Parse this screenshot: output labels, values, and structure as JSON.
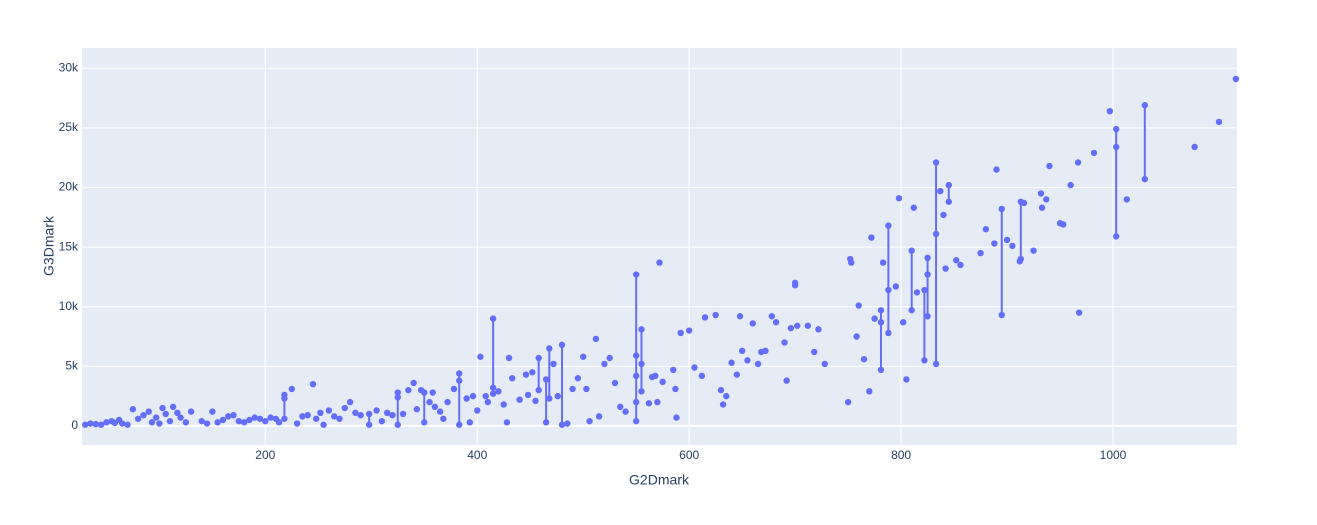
{
  "chart_data": {
    "type": "scatter",
    "x_label": "G2Dmark",
    "y_label": "G3Dmark",
    "color": "#636efa",
    "grid": true,
    "xlim": [
      27,
      1117
    ],
    "xticks": [
      200,
      400,
      600,
      800,
      1000
    ],
    "ylim": [
      -1600,
      31700
    ],
    "yticks": [
      0,
      {
        "value": 5000,
        "label": "5k"
      },
      {
        "value": 10000,
        "label": "10k"
      },
      {
        "value": 15000,
        "label": "15k"
      },
      {
        "value": 20000,
        "label": "20k"
      },
      {
        "value": 25000,
        "label": "25k"
      },
      {
        "value": 30000,
        "label": "30k"
      }
    ],
    "x": [
      30,
      35,
      40,
      45,
      50,
      55,
      58,
      62,
      65,
      70,
      75,
      80,
      85,
      90,
      93,
      97,
      100,
      103,
      106,
      110,
      113,
      117,
      120,
      125,
      130,
      140,
      145,
      150,
      155,
      160,
      165,
      170,
      175,
      180,
      185,
      190,
      195,
      200,
      205,
      210,
      213,
      218,
      218,
      218,
      225,
      230,
      235,
      240,
      245,
      248,
      252,
      255,
      260,
      265,
      270,
      275,
      280,
      285,
      290,
      298,
      298,
      305,
      310,
      315,
      320,
      325,
      325,
      325,
      330,
      335,
      340,
      343,
      347,
      350,
      350,
      355,
      358,
      360,
      365,
      368,
      372,
      378,
      383,
      383,
      383,
      390,
      393,
      396,
      400,
      403,
      408,
      410,
      415,
      415,
      415,
      420,
      425,
      428,
      430,
      433,
      440,
      446,
      448,
      452,
      455,
      458,
      458,
      465,
      465,
      468,
      468,
      472,
      476,
      480,
      480,
      485,
      490,
      495,
      500,
      503,
      506,
      512,
      515,
      520,
      525,
      530,
      535,
      540,
      550,
      550,
      550,
      550,
      550,
      555,
      555,
      555,
      562,
      565,
      568,
      570,
      572,
      575,
      585,
      587,
      588,
      592,
      600,
      605,
      612,
      615,
      625,
      630,
      632,
      635,
      640,
      645,
      648,
      650,
      655,
      660,
      665,
      668,
      672,
      678,
      682,
      690,
      692,
      696,
      700,
      700,
      702,
      712,
      718,
      722,
      728,
      750,
      752,
      753,
      758,
      760,
      765,
      770,
      772,
      775,
      781,
      781,
      781,
      783,
      788,
      788,
      788,
      795,
      798,
      802,
      805,
      810,
      810,
      812,
      815,
      822,
      822,
      825,
      825,
      825,
      833,
      833,
      833,
      837,
      840,
      842,
      845,
      845,
      852,
      856,
      875,
      880,
      888,
      890,
      895,
      895,
      900,
      905,
      912,
      913,
      913,
      916,
      925,
      932,
      933,
      937,
      940,
      950,
      953,
      960,
      967,
      968,
      982,
      997,
      1003,
      1003,
      1003,
      1013,
      1030,
      1030,
      1077,
      1100,
      1116
    ],
    "values": [
      100,
      200,
      150,
      100,
      300,
      400,
      250,
      500,
      200,
      100,
      1400,
      600,
      900,
      1200,
      300,
      700,
      200,
      1500,
      1000,
      400,
      1600,
      1100,
      700,
      300,
      1200,
      400,
      200,
      1200,
      300,
      500,
      800,
      900,
      400,
      300,
      500,
      700,
      600,
      400,
      700,
      600,
      300,
      2600,
      2300,
      600,
      3100,
      200,
      800,
      900,
      3500,
      600,
      1100,
      100,
      1300,
      800,
      600,
      1500,
      2000,
      1100,
      900,
      100,
      1000,
      1300,
      400,
      1100,
      900,
      2800,
      2400,
      100,
      1000,
      3000,
      3600,
      1400,
      3000,
      2800,
      300,
      2000,
      2800,
      1600,
      1200,
      600,
      2000,
      3100,
      4400,
      3800,
      100,
      2300,
      300,
      2500,
      1300,
      5800,
      2500,
      2000,
      9000,
      3200,
      2700,
      2900,
      1800,
      300,
      5700,
      4000,
      2200,
      4300,
      2600,
      4500,
      2100,
      5700,
      3000,
      3900,
      300,
      6500,
      2300,
      5200,
      2500,
      6800,
      100,
      200,
      3100,
      4000,
      5800,
      3100,
      400,
      7300,
      800,
      5200,
      5700,
      3600,
      1600,
      1200,
      12700,
      5900,
      4200,
      2000,
      400,
      8100,
      5200,
      2900,
      1900,
      4100,
      4200,
      2000,
      13700,
      3700,
      4700,
      3100,
      700,
      7800,
      8000,
      4900,
      4200,
      9100,
      9300,
      3000,
      1800,
      2500,
      5300,
      4300,
      9200,
      6300,
      5500,
      8600,
      5200,
      6200,
      6300,
      9200,
      8700,
      7000,
      3800,
      8200,
      12000,
      11800,
      8400,
      8400,
      6200,
      8100,
      5200,
      2000,
      14000,
      13700,
      7500,
      10100,
      5600,
      2900,
      15800,
      9000,
      9700,
      8700,
      4700,
      13700,
      16800,
      11400,
      7800,
      11700,
      19100,
      8700,
      3900,
      14700,
      9700,
      18300,
      11200,
      11400,
      5500,
      14100,
      12700,
      9200,
      22100,
      16100,
      5200,
      19700,
      17700,
      13200,
      20200,
      18800,
      13900,
      13500,
      14500,
      16500,
      15300,
      21500,
      18200,
      9300,
      15600,
      15100,
      13800,
      18800,
      14000,
      18700,
      14700,
      19500,
      18300,
      19000,
      21800,
      17000,
      16900,
      20200,
      22100,
      9500,
      22900,
      26400,
      24900,
      23400,
      15900,
      19000,
      26900,
      20700,
      23400,
      25500,
      29100
    ]
  }
}
